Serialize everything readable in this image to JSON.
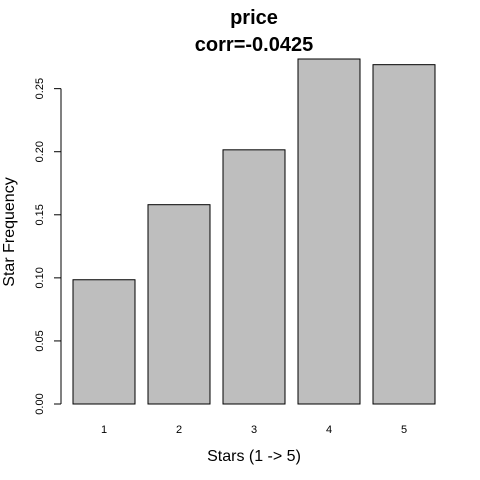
{
  "chart_data": {
    "type": "bar",
    "title": "price",
    "subtitle": "corr=-0.0425",
    "xlabel": "Stars (1 -> 5)",
    "ylabel": "Star Frequency",
    "categories": [
      "1",
      "2",
      "3",
      "4",
      "5"
    ],
    "values": [
      0.0985,
      0.158,
      0.2015,
      0.2735,
      0.269
    ],
    "ylim": [
      0,
      0.2735
    ],
    "yticks": [
      0.0,
      0.05,
      0.1,
      0.15,
      0.2,
      0.25
    ],
    "ytick_labels": [
      "0.00",
      "0.05",
      "0.10",
      "0.15",
      "0.20",
      "0.25"
    ],
    "bar_color": "#bebebe",
    "grid": false,
    "legend": "none"
  }
}
